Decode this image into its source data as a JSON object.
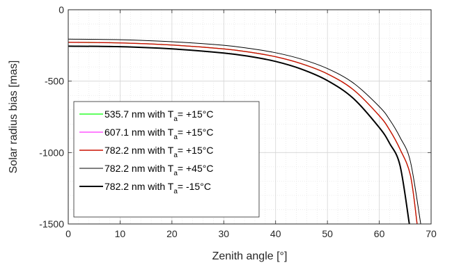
{
  "chart_data": {
    "type": "line",
    "title": "",
    "xlabel": "Zenith angle [°]",
    "ylabel": "Solar radius bias [mas]",
    "xlim": [
      0,
      70
    ],
    "ylim": [
      -1500,
      0
    ],
    "x_ticks": [
      "0",
      "10",
      "20",
      "30",
      "40",
      "50",
      "60",
      "70"
    ],
    "y_ticks": [
      "0",
      "-500",
      "-1000",
      "-1500"
    ],
    "grid": true,
    "minor_grid": true,
    "legend_position": "bottom-left",
    "series": [
      {
        "name": "535.7 nm with T_a= +15°C",
        "label_main": "535.7 nm with T",
        "label_sub": "a",
        "label_tail": "= +15°C",
        "color": "#00ff00",
        "width": 1.2,
        "x": [
          0,
          10,
          20,
          30,
          35,
          40,
          45,
          50,
          55,
          60,
          62,
          64,
          66,
          67.3
        ],
        "y": [
          -228,
          -232,
          -247,
          -274,
          -297,
          -329,
          -378,
          -449,
          -560,
          -742,
          -842,
          -976,
          -1158,
          -1500
        ]
      },
      {
        "name": "607.1 nm with T_a= +15°C",
        "label_main": "607.1 nm with T",
        "label_sub": "a",
        "label_tail": "= +15°C",
        "color": "#ff00ff",
        "width": 1.0,
        "x": [
          0,
          10,
          20,
          30,
          35,
          40,
          45,
          50,
          55,
          60,
          62,
          64,
          66,
          67.3
        ],
        "y": [
          -228,
          -232,
          -247,
          -274,
          -297,
          -329,
          -378,
          -449,
          -560,
          -742,
          -842,
          -976,
          -1158,
          -1500
        ]
      },
      {
        "name": "782.2 nm with T_a= +15°C",
        "label_main": "782.2 nm with T",
        "label_sub": "a",
        "label_tail": "= +15°C",
        "color": "#cc1100",
        "width": 1.4,
        "x": [
          0,
          10,
          20,
          30,
          35,
          40,
          45,
          50,
          55,
          60,
          62,
          64,
          66,
          67.3
        ],
        "y": [
          -228,
          -232,
          -247,
          -274,
          -297,
          -329,
          -378,
          -449,
          -560,
          -742,
          -842,
          -976,
          -1158,
          -1500
        ]
      },
      {
        "name": "782.2 nm with T_a= +45°C",
        "label_main": "782.2 nm with T",
        "label_sub": "a",
        "label_tail": "= +45°C",
        "color": "#000000",
        "width": 1.0,
        "x": [
          0,
          10,
          20,
          30,
          35,
          40,
          45,
          50,
          55,
          60,
          62,
          64,
          66,
          68.0
        ],
        "y": [
          -206,
          -210,
          -224,
          -249,
          -271,
          -301,
          -346,
          -412,
          -513,
          -678,
          -770,
          -893,
          -1062,
          -1500
        ]
      },
      {
        "name": "782.2 nm with T_a= -15°C",
        "label_main": "782.2 nm with T",
        "label_sub": "a",
        "label_tail": "= -15°C",
        "color": "#000000",
        "width": 2.0,
        "x": [
          0,
          10,
          20,
          30,
          35,
          40,
          45,
          50,
          55,
          60,
          62,
          64,
          65.8
        ],
        "y": [
          -255,
          -259,
          -274,
          -303,
          -327,
          -362,
          -416,
          -496,
          -621,
          -825,
          -936,
          -1090,
          -1500
        ]
      }
    ]
  }
}
